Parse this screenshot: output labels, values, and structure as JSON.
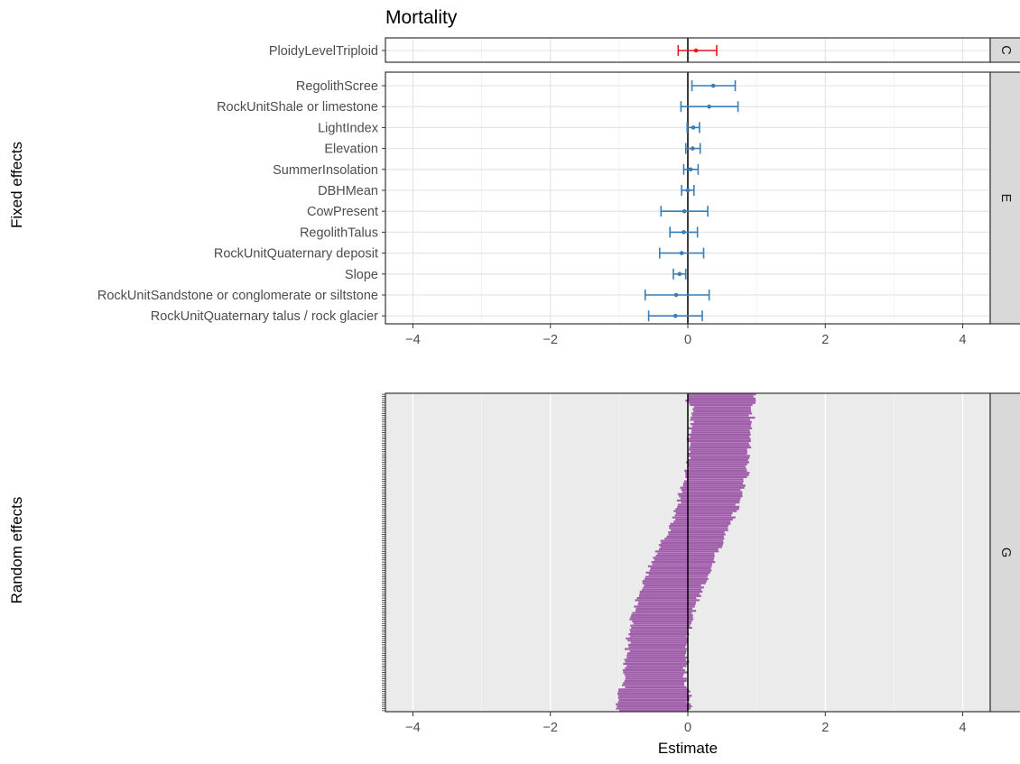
{
  "chart_data": {
    "type": "forest",
    "title": "Mortality",
    "xlabel": "Estimate",
    "xlim": [
      -4.4,
      4.4
    ],
    "xticks": [
      -4,
      -2,
      0,
      2,
      4
    ],
    "xtick_labels": [
      "−4",
      "−2",
      "0",
      "2",
      "4"
    ],
    "group_axis_labels": {
      "fixed": "Fixed effects",
      "random": "Random effects"
    },
    "colors": {
      "C": "#e41a1c",
      "E": "#377eb8",
      "G": "#984ea3"
    },
    "panels": [
      {
        "strip": "C",
        "items": [
          {
            "label": "PloidyLevelTriploid",
            "estimate": 0.12,
            "lower": -0.14,
            "upper": 0.42
          }
        ]
      },
      {
        "strip": "E",
        "items": [
          {
            "label": "RegolithScree",
            "estimate": 0.37,
            "lower": 0.06,
            "upper": 0.69
          },
          {
            "label": "RockUnitShale or limestone",
            "estimate": 0.31,
            "lower": -0.1,
            "upper": 0.73
          },
          {
            "label": "LightIndex",
            "estimate": 0.08,
            "lower": -0.01,
            "upper": 0.17
          },
          {
            "label": "Elevation",
            "estimate": 0.07,
            "lower": -0.03,
            "upper": 0.18
          },
          {
            "label": "SummerInsolation",
            "estimate": 0.04,
            "lower": -0.06,
            "upper": 0.15
          },
          {
            "label": "DBHMean",
            "estimate": 0.0,
            "lower": -0.09,
            "upper": 0.09
          },
          {
            "label": "CowPresent",
            "estimate": -0.05,
            "lower": -0.39,
            "upper": 0.29
          },
          {
            "label": "RegolithTalus",
            "estimate": -0.06,
            "lower": -0.26,
            "upper": 0.14
          },
          {
            "label": "RockUnitQuaternary deposit",
            "estimate": -0.09,
            "lower": -0.41,
            "upper": 0.23
          },
          {
            "label": "Slope",
            "estimate": -0.12,
            "lower": -0.21,
            "upper": -0.03
          },
          {
            "label": "RockUnitSandstone or conglomerate or siltstone",
            "estimate": -0.17,
            "lower": -0.62,
            "upper": 0.31
          },
          {
            "label": "RockUnitQuaternary talus / rock glacier",
            "estimate": -0.18,
            "lower": -0.57,
            "upper": 0.21
          }
        ]
      },
      {
        "strip": "G",
        "n_levels": 150,
        "estimate_range": [
          -0.5,
          0.5
        ],
        "half_width": 0.44,
        "items": []
      }
    ]
  }
}
